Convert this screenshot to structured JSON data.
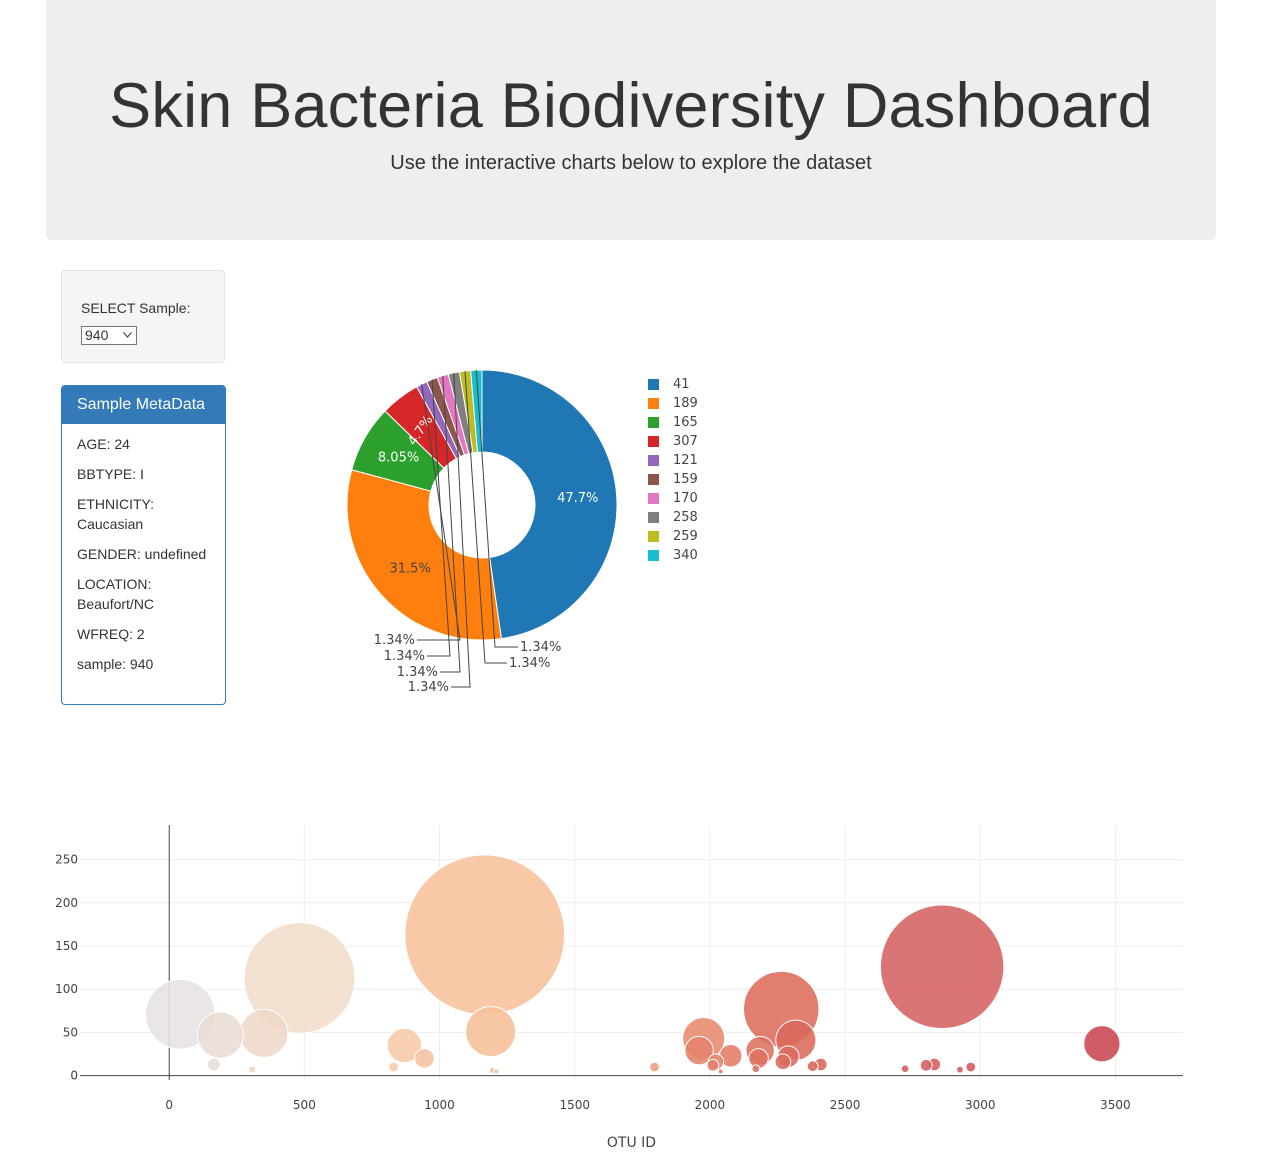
{
  "header": {
    "title": "Skin Bacteria Biodiversity Dashboard",
    "subtitle": "Use the interactive charts below to explore the dataset"
  },
  "selector": {
    "label": "SELECT Sample:",
    "selected": "940"
  },
  "metadata_panel": {
    "title": "Sample MetaData",
    "items": [
      "AGE: 24",
      "BBTYPE: I",
      "ETHNICITY: Caucasian",
      "GENDER: undefined",
      "LOCATION: Beaufort/NC",
      "WFREQ: 2",
      "sample: 940"
    ]
  },
  "chart_data": [
    {
      "type": "pie",
      "hole": true,
      "labels": [
        "41",
        "189",
        "165",
        "307",
        "121",
        "159",
        "170",
        "258",
        "259",
        "340"
      ],
      "values": [
        47.7,
        31.5,
        8.05,
        4.7,
        1.34,
        1.34,
        1.34,
        1.34,
        1.34,
        1.34
      ],
      "text_labels": [
        "47.7%",
        "31.5%",
        "8.05%",
        "4.7%",
        "1.34%",
        "1.34%",
        "1.34%",
        "1.34%",
        "1.34%",
        "1.34%"
      ],
      "colors": [
        "#1f77b4",
        "#ff7f0e",
        "#2ca02c",
        "#d62728",
        "#9467bd",
        "#8c564b",
        "#e377c2",
        "#7f7f7f",
        "#bcbd22",
        "#17becf"
      ],
      "legend": "right"
    },
    {
      "type": "scatter",
      "mode": "bubble",
      "xlabel": "OTU ID",
      "ylabel": "",
      "xlim": [
        -330,
        3750
      ],
      "ylim": [
        -5,
        290
      ],
      "xticks": [
        0,
        500,
        1000,
        1500,
        2000,
        2500,
        3000,
        3500
      ],
      "yticks": [
        0,
        50,
        100,
        150,
        200,
        250
      ],
      "grid": true,
      "points": [
        {
          "x": 41,
          "y": 71,
          "color": "#e6e3e1"
        },
        {
          "x": 189,
          "y": 47,
          "color": "#e9ddd5"
        },
        {
          "x": 350,
          "y": 49,
          "color": "#eed8c8"
        },
        {
          "x": 482,
          "y": 113,
          "color": "#f0dccb"
        },
        {
          "x": 165,
          "y": 13,
          "color": "#e6dcd6"
        },
        {
          "x": 307,
          "y": 7,
          "color": "#efd2bd"
        },
        {
          "x": 830,
          "y": 10,
          "color": "#f4c9a8"
        },
        {
          "x": 870,
          "y": 35,
          "color": "#f5c9a6"
        },
        {
          "x": 944,
          "y": 20,
          "color": "#f5c4a0"
        },
        {
          "x": 1167,
          "y": 163,
          "color": "#f7c09b"
        },
        {
          "x": 1189,
          "y": 51,
          "color": "#f6bf98"
        },
        {
          "x": 1195,
          "y": 6,
          "color": "#f4bf9a"
        },
        {
          "x": 1210,
          "y": 5,
          "color": "#f4bf9a"
        },
        {
          "x": 1795,
          "y": 10,
          "color": "#ec9f80"
        },
        {
          "x": 1977,
          "y": 43,
          "color": "#e88a70"
        },
        {
          "x": 1960,
          "y": 29,
          "color": "#e4826a"
        },
        {
          "x": 2011,
          "y": 12,
          "color": "#e48068"
        },
        {
          "x": 2022,
          "y": 16,
          "color": "#e47f68"
        },
        {
          "x": 2077,
          "y": 23,
          "color": "#e27c66"
        },
        {
          "x": 2040,
          "y": 5,
          "color": "#e07a64"
        },
        {
          "x": 2186,
          "y": 29,
          "color": "#dd7260"
        },
        {
          "x": 2180,
          "y": 20,
          "color": "#dd7260"
        },
        {
          "x": 2170,
          "y": 8,
          "color": "#dd7260"
        },
        {
          "x": 2264,
          "y": 77,
          "color": "#dc6c5c"
        },
        {
          "x": 2318,
          "y": 41,
          "color": "#da6a5a"
        },
        {
          "x": 2270,
          "y": 16,
          "color": "#db6c5c"
        },
        {
          "x": 2290,
          "y": 22,
          "color": "#db6c5c"
        },
        {
          "x": 2380,
          "y": 11,
          "color": "#d9675a"
        },
        {
          "x": 2410,
          "y": 13,
          "color": "#d8655a"
        },
        {
          "x": 2859,
          "y": 126,
          "color": "#d56262"
        },
        {
          "x": 2722,
          "y": 8,
          "color": "#d35e5e"
        },
        {
          "x": 2800,
          "y": 12,
          "color": "#d35e5e"
        },
        {
          "x": 2830,
          "y": 13,
          "color": "#d35e5e"
        },
        {
          "x": 2925,
          "y": 7,
          "color": "#d15a5c"
        },
        {
          "x": 2965,
          "y": 10,
          "color": "#d05a5c"
        },
        {
          "x": 3450,
          "y": 37,
          "color": "#c94650"
        }
      ]
    }
  ]
}
